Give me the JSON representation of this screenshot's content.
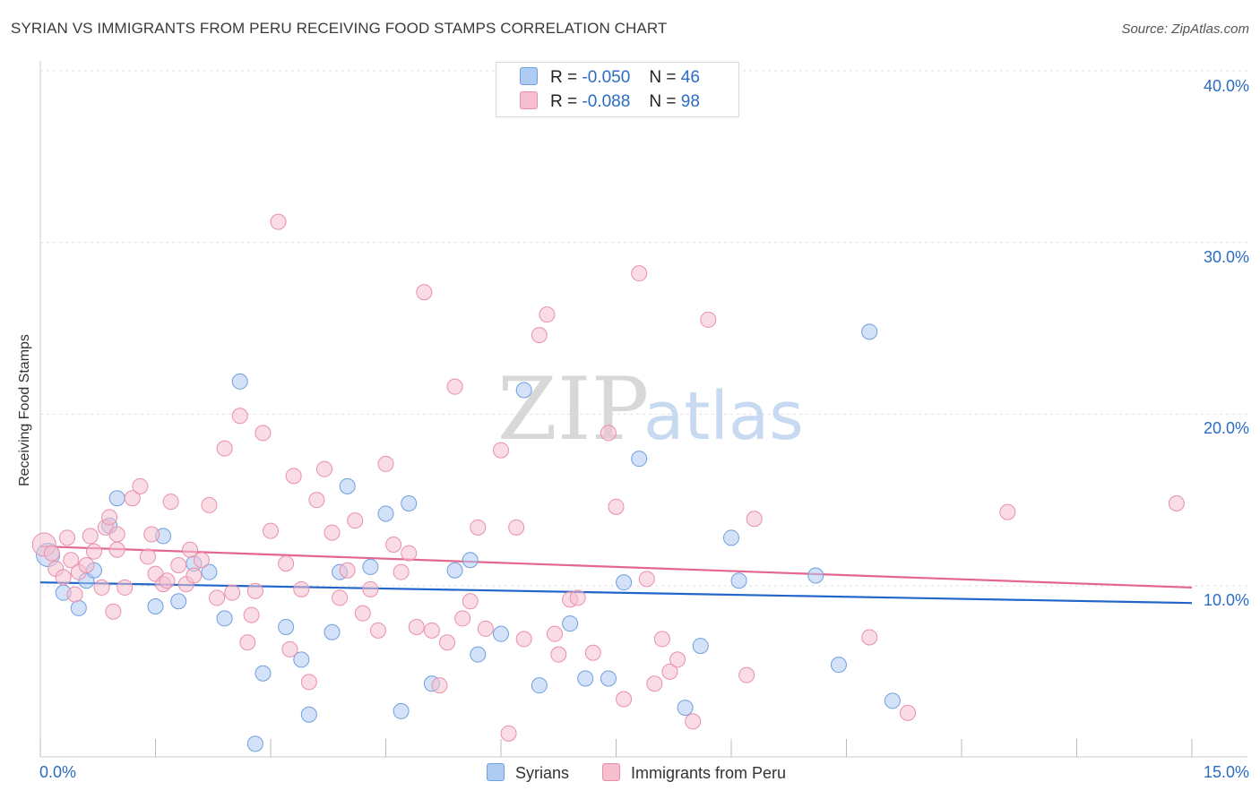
{
  "title": "SYRIAN VS IMMIGRANTS FROM PERU RECEIVING FOOD STAMPS CORRELATION CHART",
  "source": "Source: ZipAtlas.com",
  "watermark": {
    "zip": "ZIP",
    "atlas": "atlas"
  },
  "legend": {
    "r_label": "R =",
    "n_label": "N =",
    "syrians": {
      "r": "-0.050",
      "n": "46"
    },
    "peru": {
      "r": "-0.088",
      "n": "98"
    }
  },
  "colors": {
    "syrians_fill": "#aecbf2",
    "syrians_stroke": "#6f9fde",
    "syrians_line": "#2266cc",
    "peru_fill": "#f6bfd0",
    "peru_stroke": "#e98fab",
    "peru_line": "#e4668f",
    "axis_text": "#2b6cc4",
    "grid": "#dddddd"
  },
  "chart_data": {
    "type": "scatter",
    "title": "SYRIAN VS IMMIGRANTS FROM PERU RECEIVING FOOD STAMPS CORRELATION CHART",
    "xlabel": "",
    "ylabel": "Receiving Food Stamps",
    "xlim": [
      0,
      15
    ],
    "ylim": [
      0,
      40
    ],
    "x_tick_labels": [
      "0.0%",
      "15.0%"
    ],
    "y_ticks": [
      10,
      20,
      30,
      40
    ],
    "y_tick_labels": [
      "10.0%",
      "20.0%",
      "30.0%",
      "40.0%"
    ],
    "grid": true,
    "legend_position": "top-center",
    "series": [
      {
        "name": "Syrians",
        "trend": {
          "x": [
            0,
            15
          ],
          "y": [
            10.2,
            9.0
          ]
        },
        "points": [
          [
            0.1,
            11.8
          ],
          [
            0.3,
            9.6
          ],
          [
            0.5,
            8.7
          ],
          [
            0.6,
            10.3
          ],
          [
            0.9,
            13.5
          ],
          [
            1.0,
            15.1
          ],
          [
            1.5,
            8.8
          ],
          [
            1.6,
            12.9
          ],
          [
            1.8,
            9.1
          ],
          [
            2.0,
            11.3
          ],
          [
            2.2,
            10.8
          ],
          [
            2.4,
            8.1
          ],
          [
            2.6,
            21.9
          ],
          [
            2.8,
            0.8
          ],
          [
            2.9,
            4.9
          ],
          [
            3.2,
            7.6
          ],
          [
            3.4,
            5.7
          ],
          [
            3.5,
            2.5
          ],
          [
            3.8,
            7.3
          ],
          [
            3.9,
            10.8
          ],
          [
            4.0,
            15.8
          ],
          [
            4.3,
            11.1
          ],
          [
            4.5,
            14.2
          ],
          [
            4.7,
            2.7
          ],
          [
            4.8,
            14.8
          ],
          [
            5.1,
            4.3
          ],
          [
            5.4,
            10.9
          ],
          [
            5.6,
            11.5
          ],
          [
            5.7,
            6.0
          ],
          [
            6.0,
            7.2
          ],
          [
            6.3,
            21.4
          ],
          [
            6.5,
            4.2
          ],
          [
            6.9,
            7.8
          ],
          [
            7.1,
            4.6
          ],
          [
            7.4,
            4.6
          ],
          [
            7.6,
            10.2
          ],
          [
            7.8,
            17.4
          ],
          [
            8.4,
            2.9
          ],
          [
            8.6,
            6.5
          ],
          [
            9.0,
            12.8
          ],
          [
            9.1,
            10.3
          ],
          [
            10.1,
            10.6
          ],
          [
            10.4,
            5.4
          ],
          [
            10.8,
            24.8
          ],
          [
            11.1,
            3.3
          ],
          [
            0.7,
            10.9
          ]
        ]
      },
      {
        "name": "Immigrants from Peru",
        "trend": {
          "x": [
            0,
            15
          ],
          "y": [
            12.3,
            9.9
          ]
        },
        "points": [
          [
            0.05,
            12.4
          ],
          [
            0.2,
            11.0
          ],
          [
            0.3,
            10.5
          ],
          [
            0.35,
            12.8
          ],
          [
            0.4,
            11.5
          ],
          [
            0.45,
            9.5
          ],
          [
            0.5,
            10.8
          ],
          [
            0.6,
            11.2
          ],
          [
            0.65,
            12.9
          ],
          [
            0.7,
            12.0
          ],
          [
            0.8,
            9.9
          ],
          [
            0.85,
            13.4
          ],
          [
            0.9,
            14.0
          ],
          [
            0.95,
            8.5
          ],
          [
            1.0,
            13.0
          ],
          [
            1.1,
            9.9
          ],
          [
            1.2,
            15.1
          ],
          [
            1.3,
            15.8
          ],
          [
            1.4,
            11.7
          ],
          [
            1.45,
            13.0
          ],
          [
            1.5,
            10.7
          ],
          [
            1.6,
            10.1
          ],
          [
            1.65,
            10.3
          ],
          [
            1.7,
            14.9
          ],
          [
            1.8,
            11.2
          ],
          [
            1.9,
            10.1
          ],
          [
            1.95,
            12.1
          ],
          [
            2.0,
            10.6
          ],
          [
            2.1,
            11.5
          ],
          [
            2.2,
            14.7
          ],
          [
            2.3,
            9.3
          ],
          [
            2.4,
            18.0
          ],
          [
            2.5,
            9.6
          ],
          [
            2.6,
            19.9
          ],
          [
            2.7,
            6.7
          ],
          [
            2.75,
            8.3
          ],
          [
            2.8,
            9.7
          ],
          [
            2.9,
            18.9
          ],
          [
            3.0,
            13.2
          ],
          [
            3.1,
            31.2
          ],
          [
            3.2,
            11.3
          ],
          [
            3.25,
            6.3
          ],
          [
            3.3,
            16.4
          ],
          [
            3.4,
            9.8
          ],
          [
            3.5,
            4.4
          ],
          [
            3.6,
            15.0
          ],
          [
            3.7,
            16.8
          ],
          [
            3.8,
            13.1
          ],
          [
            3.9,
            9.3
          ],
          [
            4.0,
            10.9
          ],
          [
            4.1,
            13.8
          ],
          [
            4.2,
            8.4
          ],
          [
            4.3,
            9.8
          ],
          [
            4.4,
            7.4
          ],
          [
            4.5,
            17.1
          ],
          [
            4.6,
            12.4
          ],
          [
            4.7,
            10.8
          ],
          [
            4.8,
            11.9
          ],
          [
            4.9,
            7.6
          ],
          [
            5.0,
            27.1
          ],
          [
            5.1,
            7.4
          ],
          [
            5.2,
            4.2
          ],
          [
            5.3,
            6.7
          ],
          [
            5.4,
            21.6
          ],
          [
            5.5,
            8.1
          ],
          [
            5.6,
            9.1
          ],
          [
            5.7,
            13.4
          ],
          [
            5.8,
            7.5
          ],
          [
            6.0,
            17.9
          ],
          [
            6.1,
            1.4
          ],
          [
            6.2,
            13.4
          ],
          [
            6.3,
            6.9
          ],
          [
            6.5,
            24.6
          ],
          [
            6.6,
            25.8
          ],
          [
            6.7,
            7.2
          ],
          [
            6.75,
            6.0
          ],
          [
            6.9,
            9.2
          ],
          [
            7.0,
            9.3
          ],
          [
            7.2,
            6.1
          ],
          [
            7.4,
            18.9
          ],
          [
            7.5,
            14.6
          ],
          [
            7.6,
            3.4
          ],
          [
            7.8,
            28.2
          ],
          [
            7.9,
            10.4
          ],
          [
            8.0,
            4.3
          ],
          [
            8.1,
            6.9
          ],
          [
            8.2,
            5.0
          ],
          [
            8.3,
            5.7
          ],
          [
            8.5,
            2.1
          ],
          [
            8.7,
            25.5
          ],
          [
            9.2,
            4.8
          ],
          [
            9.3,
            13.9
          ],
          [
            10.8,
            7.0
          ],
          [
            11.3,
            2.6
          ],
          [
            12.6,
            14.3
          ],
          [
            14.8,
            14.8
          ],
          [
            0.15,
            11.9
          ],
          [
            1.0,
            12.1
          ]
        ]
      }
    ]
  },
  "bottom_legend": {
    "syrians": "Syrians",
    "peru": "Immigrants from Peru"
  }
}
